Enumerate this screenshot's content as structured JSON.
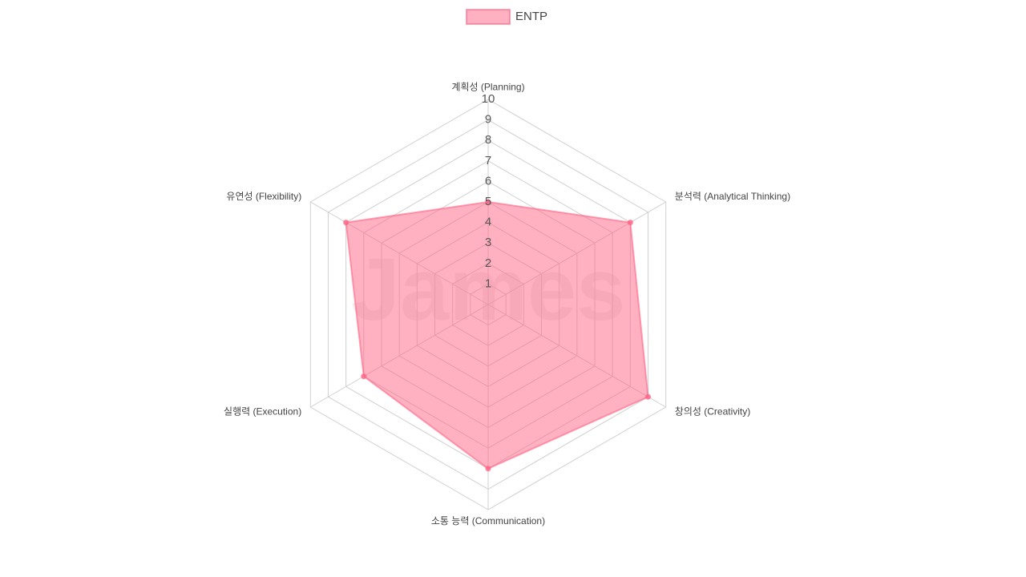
{
  "chart_data": {
    "type": "radar",
    "watermark": "James",
    "categories": [
      "계획성 (Planning)",
      "분석력 (Analytical Thinking)",
      "창의성 (Creativity)",
      "소통 능력 (Communication)",
      "실행력 (Execution)",
      "유연성 (Flexibility)"
    ],
    "series": [
      {
        "name": "ENTP",
        "color": "#ff6384",
        "values": [
          5,
          8,
          9,
          8,
          7,
          8
        ]
      }
    ],
    "rlim": [
      0,
      10
    ],
    "rticks": [
      1,
      2,
      3,
      4,
      5,
      6,
      7,
      8,
      9,
      10
    ],
    "grid": true,
    "legend": "top"
  }
}
